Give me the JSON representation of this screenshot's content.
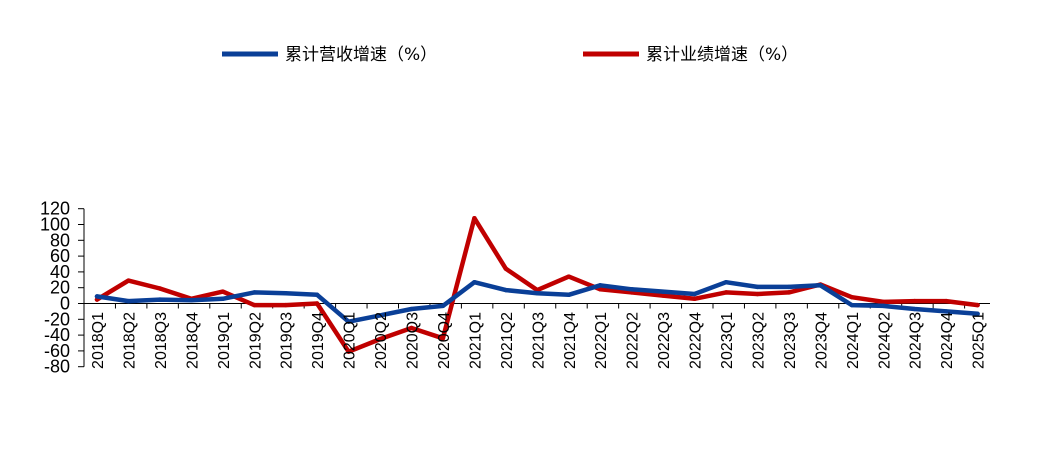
{
  "chart_data": {
    "type": "line",
    "categories": [
      "2018Q1",
      "2018Q2",
      "2018Q3",
      "2018Q4",
      "2019Q1",
      "2019Q2",
      "2019Q3",
      "2019Q4",
      "2020Q1",
      "2020Q2",
      "2020Q3",
      "2020Q4",
      "2021Q1",
      "2021Q2",
      "2021Q3",
      "2021Q4",
      "2022Q1",
      "2022Q2",
      "2022Q3",
      "2022Q4",
      "2023Q1",
      "2023Q2",
      "2023Q3",
      "2023Q4",
      "2024Q1",
      "2024Q2",
      "2024Q3",
      "2024Q4",
      "2025Q1"
    ],
    "series": [
      {
        "name": "累计营收增速（%）",
        "color": "#0a3f97",
        "values": [
          9,
          3,
          5,
          4,
          6,
          14,
          13,
          11,
          -23,
          -15,
          -7,
          -3,
          27,
          17,
          13,
          11,
          23,
          18,
          15,
          12,
          27,
          21,
          21,
          23,
          -2,
          -3,
          -7,
          -10,
          -13
        ]
      },
      {
        "name": "累计业绩增速（%）",
        "color": "#c00000",
        "values": [
          5,
          29,
          19,
          6,
          15,
          -2,
          -2,
          0,
          -61,
          -45,
          -31,
          -44,
          108,
          44,
          17,
          34,
          18,
          14,
          10,
          6,
          14,
          12,
          14,
          24,
          8,
          2,
          3,
          3,
          -2
        ]
      }
    ],
    "y_ticks": [
      120,
      100,
      80,
      60,
      40,
      20,
      0,
      -20,
      -40,
      -60,
      -80
    ],
    "ylim": [
      -80,
      120
    ],
    "grid": false,
    "legend_position": "top"
  }
}
